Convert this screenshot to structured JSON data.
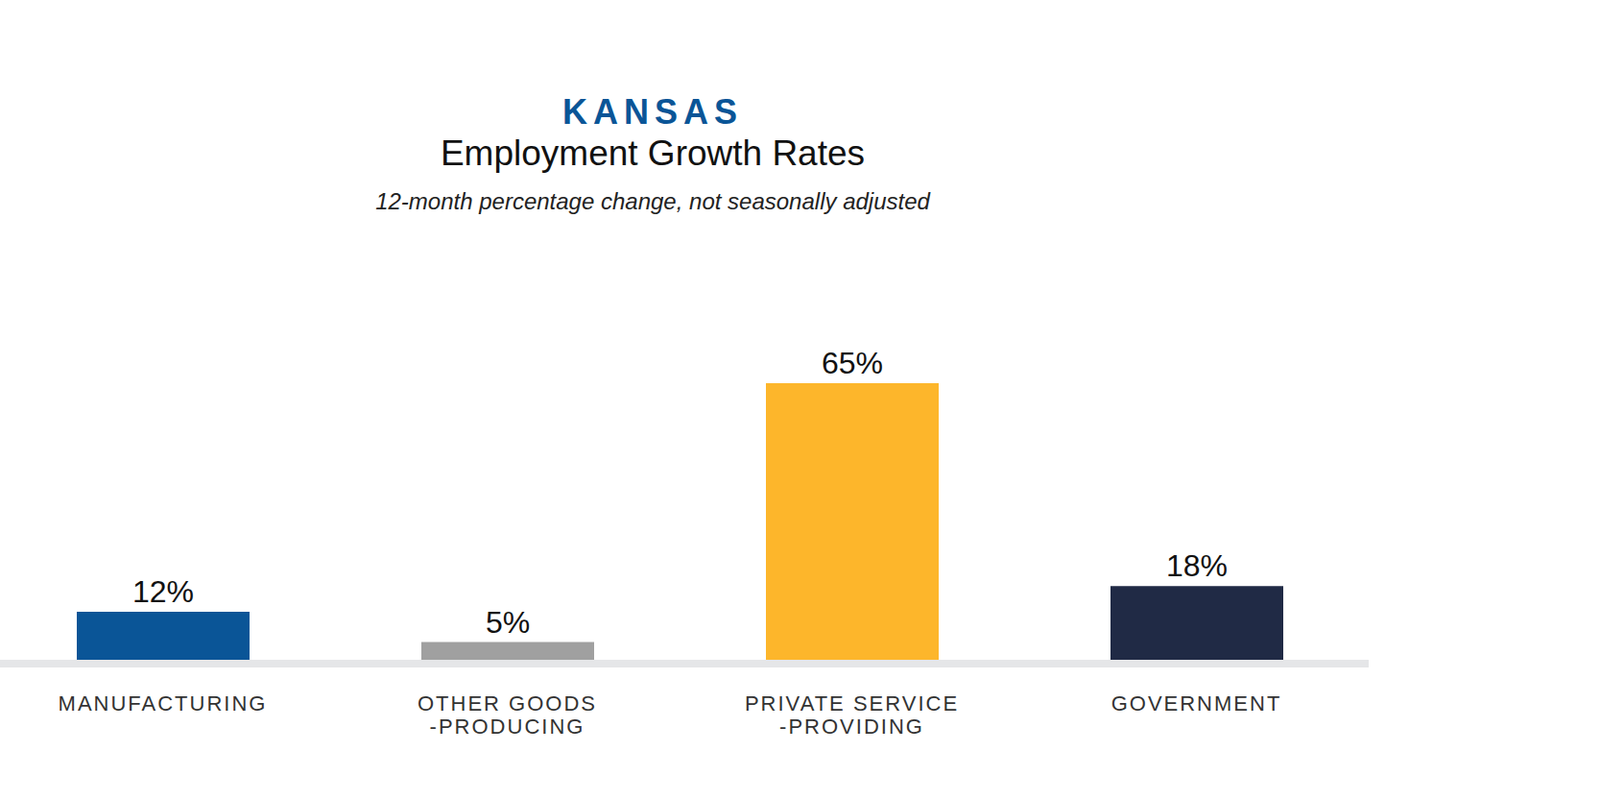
{
  "chart_data": {
    "type": "bar",
    "title": "KANSAS",
    "subtitle": "Employment Growth Rates",
    "note": "12-month percentage change, not seasonally adjusted",
    "categories": [
      "MANUFACTURING",
      "OTHER GOODS -PRODUCING",
      "PRIVATE SERVICE -PROVIDING",
      "GOVERNMENT"
    ],
    "values": [
      12,
      5,
      65,
      18
    ],
    "value_labels": [
      "12%",
      "5%",
      "65%",
      "18%"
    ],
    "colors": [
      "#0a5597",
      "#a0a0a0",
      "#fdb62b",
      "#202a45"
    ],
    "ylim": [
      0,
      65
    ],
    "data_labels": true,
    "tick_labels": "x",
    "grid": false
  }
}
